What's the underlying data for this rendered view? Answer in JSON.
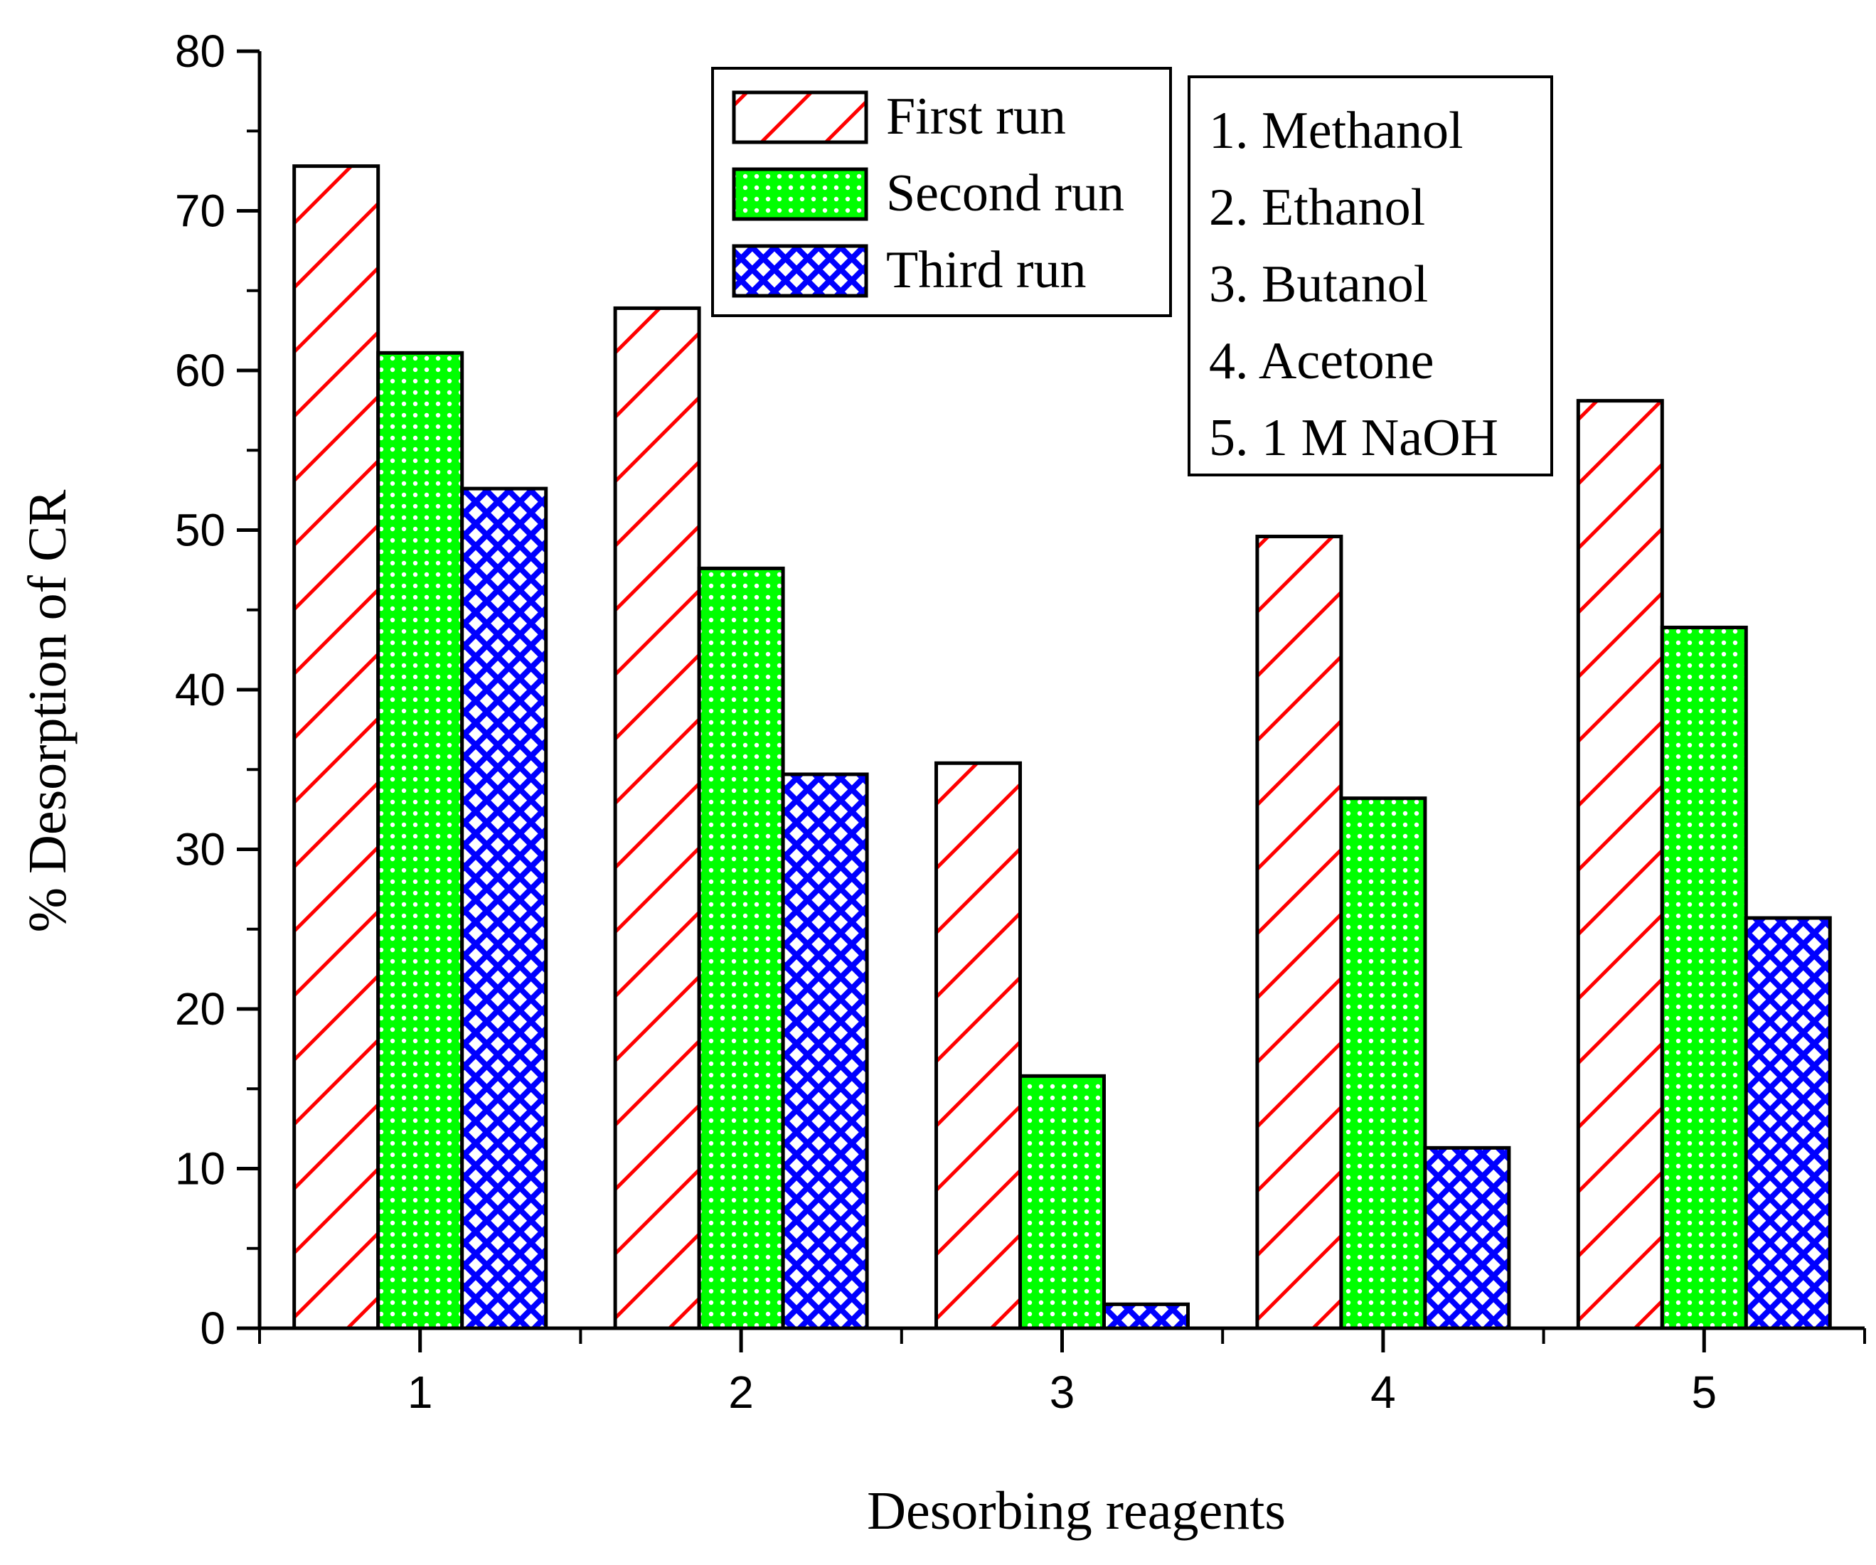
{
  "chart_data": {
    "type": "bar",
    "title": "",
    "xlabel": "Desorbing reagents",
    "ylabel": "% Desorption of CR",
    "categories": [
      "1",
      "2",
      "3",
      "4",
      "5"
    ],
    "ylim": [
      0,
      80
    ],
    "yticks": [
      "0",
      "10",
      "20",
      "30",
      "40",
      "50",
      "60",
      "70",
      "80"
    ],
    "grid": false,
    "legend_position": "top-center",
    "series": [
      {
        "name": "First run",
        "color": "#ff0000",
        "pattern": "diagonal-hatch",
        "values": [
          72.8,
          63.9,
          35.4,
          49.6,
          58.1
        ]
      },
      {
        "name": "Second run",
        "color": "#00ff00",
        "pattern": "dotted-mesh",
        "values": [
          61.1,
          47.6,
          15.8,
          33.2,
          43.9
        ]
      },
      {
        "name": "Third run",
        "color": "#0000ff",
        "pattern": "cross-hatch",
        "values": [
          52.6,
          34.7,
          1.5,
          11.3,
          25.7
        ]
      }
    ],
    "key_box": {
      "position": "top-right",
      "entries": [
        "1. Methanol",
        "2. Ethanol",
        "3. Butanol",
        "4. Acetone",
        "5. 1 M NaOH"
      ]
    }
  }
}
